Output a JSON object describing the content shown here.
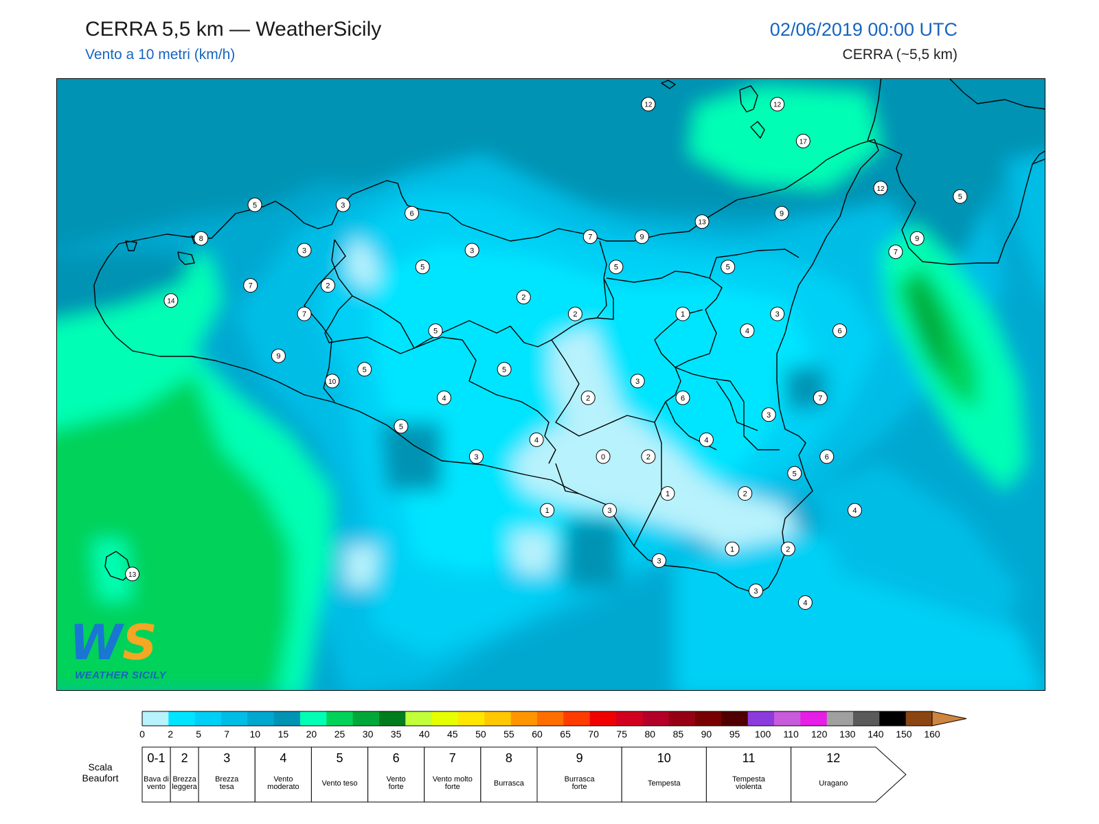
{
  "header": {
    "title": "CERRA 5,5 km — WeatherSicily",
    "subtitle": "Vento a 10 metri (km/h)",
    "datetime": "02/06/2019 00:00 UTC",
    "model": "CERRA (~5,5 km)"
  },
  "logo": {
    "mark": "WS",
    "text": "WEATHER SICILY"
  },
  "map": {
    "icon": "wind-speed-map",
    "stations": [
      {
        "v": "12",
        "lon": 14.35,
        "lat": 38.8
      },
      {
        "v": "12",
        "lon": 14.95,
        "lat": 38.8
      },
      {
        "v": "17",
        "lon": 15.07,
        "lat": 38.58
      },
      {
        "v": "12",
        "lon": 15.43,
        "lat": 38.3
      },
      {
        "v": "5",
        "lon": 15.8,
        "lat": 38.25
      },
      {
        "v": "9",
        "lon": 15.6,
        "lat": 38.0
      },
      {
        "v": "13",
        "lon": 14.6,
        "lat": 38.1
      },
      {
        "v": "9",
        "lon": 14.97,
        "lat": 38.15
      },
      {
        "v": "7",
        "lon": 15.5,
        "lat": 37.92
      },
      {
        "v": "5",
        "lon": 12.52,
        "lat": 38.2
      },
      {
        "v": "3",
        "lon": 12.93,
        "lat": 38.2
      },
      {
        "v": "6",
        "lon": 13.25,
        "lat": 38.15
      },
      {
        "v": "8",
        "lon": 12.27,
        "lat": 38.0
      },
      {
        "v": "3",
        "lon": 12.75,
        "lat": 37.93
      },
      {
        "v": "7",
        "lon": 14.08,
        "lat": 38.01
      },
      {
        "v": "9",
        "lon": 14.32,
        "lat": 38.01
      },
      {
        "v": "3",
        "lon": 13.53,
        "lat": 37.93
      },
      {
        "v": "5",
        "lon": 13.3,
        "lat": 37.83
      },
      {
        "v": "2",
        "lon": 12.86,
        "lat": 37.72
      },
      {
        "v": "7",
        "lon": 12.5,
        "lat": 37.72
      },
      {
        "v": "14",
        "lon": 12.13,
        "lat": 37.63
      },
      {
        "v": "5",
        "lon": 14.2,
        "lat": 37.83
      },
      {
        "v": "5",
        "lon": 14.72,
        "lat": 37.83
      },
      {
        "v": "2",
        "lon": 13.77,
        "lat": 37.65
      },
      {
        "v": "2",
        "lon": 14.01,
        "lat": 37.55
      },
      {
        "v": "1",
        "lon": 14.51,
        "lat": 37.55
      },
      {
        "v": "3",
        "lon": 14.95,
        "lat": 37.55
      },
      {
        "v": "7",
        "lon": 12.75,
        "lat": 37.55
      },
      {
        "v": "5",
        "lon": 13.36,
        "lat": 37.45
      },
      {
        "v": "4",
        "lon": 14.81,
        "lat": 37.45
      },
      {
        "v": "6",
        "lon": 15.24,
        "lat": 37.45
      },
      {
        "v": "9",
        "lon": 12.63,
        "lat": 37.3
      },
      {
        "v": "5",
        "lon": 13.03,
        "lat": 37.22
      },
      {
        "v": "5",
        "lon": 13.68,
        "lat": 37.22
      },
      {
        "v": "10",
        "lon": 12.88,
        "lat": 37.15
      },
      {
        "v": "3",
        "lon": 14.3,
        "lat": 37.15
      },
      {
        "v": "4",
        "lon": 13.4,
        "lat": 37.05
      },
      {
        "v": "2",
        "lon": 14.07,
        "lat": 37.05
      },
      {
        "v": "6",
        "lon": 14.51,
        "lat": 37.05
      },
      {
        "v": "7",
        "lon": 15.15,
        "lat": 37.05
      },
      {
        "v": "3",
        "lon": 14.91,
        "lat": 36.95
      },
      {
        "v": "5",
        "lon": 13.2,
        "lat": 36.88
      },
      {
        "v": "4",
        "lon": 13.83,
        "lat": 36.8
      },
      {
        "v": "4",
        "lon": 14.62,
        "lat": 36.8
      },
      {
        "v": "3",
        "lon": 13.55,
        "lat": 36.7
      },
      {
        "v": "0",
        "lon": 14.14,
        "lat": 36.7
      },
      {
        "v": "2",
        "lon": 14.35,
        "lat": 36.7
      },
      {
        "v": "6",
        "lon": 15.18,
        "lat": 36.7
      },
      {
        "v": "5",
        "lon": 15.03,
        "lat": 36.6
      },
      {
        "v": "1",
        "lon": 14.44,
        "lat": 36.48
      },
      {
        "v": "2",
        "lon": 14.8,
        "lat": 36.48
      },
      {
        "v": "1",
        "lon": 13.88,
        "lat": 36.38
      },
      {
        "v": "3",
        "lon": 14.17,
        "lat": 36.38
      },
      {
        "v": "4",
        "lon": 15.31,
        "lat": 36.38
      },
      {
        "v": "1",
        "lon": 14.74,
        "lat": 36.15
      },
      {
        "v": "2",
        "lon": 15.0,
        "lat": 36.15
      },
      {
        "v": "3",
        "lon": 14.4,
        "lat": 36.08
      },
      {
        "v": "3",
        "lon": 14.85,
        "lat": 35.9
      },
      {
        "v": "4",
        "lon": 15.08,
        "lat": 35.83
      },
      {
        "v": "13",
        "lon": 11.95,
        "lat": 36.0
      }
    ]
  },
  "colorbar": {
    "ticks": [
      "0",
      "2",
      "5",
      "7",
      "10",
      "15",
      "20",
      "25",
      "30",
      "35",
      "40",
      "45",
      "50",
      "55",
      "60",
      "65",
      "70",
      "75",
      "80",
      "85",
      "90",
      "95",
      "100",
      "110",
      "120",
      "130",
      "140",
      "150",
      "160"
    ],
    "colors": [
      "#b8f2fc",
      "#00e5ff",
      "#00d0f5",
      "#00bde6",
      "#00a8d0",
      "#0093b4",
      "#00ffb4",
      "#00d25a",
      "#00a83a",
      "#007d1e",
      "#c0ff3a",
      "#e6ff00",
      "#ffe600",
      "#ffc800",
      "#ff9600",
      "#ff6e00",
      "#ff3c00",
      "#f00000",
      "#d2001e",
      "#b40028",
      "#960014",
      "#780000",
      "#500000",
      "#8c3cdc",
      "#c85adc",
      "#e61ee6",
      "#a0a0a0",
      "#5a5a5a",
      "#000000",
      "#8b4513",
      "#cd853f"
    ]
  },
  "beaufort": {
    "label_line1": "Scala",
    "label_line2": "Beaufort",
    "cells": [
      {
        "num": "0-1",
        "name1": "Bava di",
        "name2": "vento"
      },
      {
        "num": "2",
        "name1": "Brezza",
        "name2": "leggera"
      },
      {
        "num": "3",
        "name1": "Brezza",
        "name2": "tesa"
      },
      {
        "num": "4",
        "name1": "Vento",
        "name2": "moderato"
      },
      {
        "num": "5",
        "name1": "Vento teso",
        "name2": ""
      },
      {
        "num": "6",
        "name1": "Vento",
        "name2": "forte"
      },
      {
        "num": "7",
        "name1": "Vento molto",
        "name2": "forte"
      },
      {
        "num": "8",
        "name1": "Burrasca",
        "name2": ""
      },
      {
        "num": "9",
        "name1": "Burrasca",
        "name2": "forte"
      },
      {
        "num": "10",
        "name1": "Tempesta",
        "name2": ""
      },
      {
        "num": "11",
        "name1": "Tempesta",
        "name2": "violenta"
      },
      {
        "num": "12",
        "name1": "Uragano",
        "name2": ""
      }
    ]
  }
}
